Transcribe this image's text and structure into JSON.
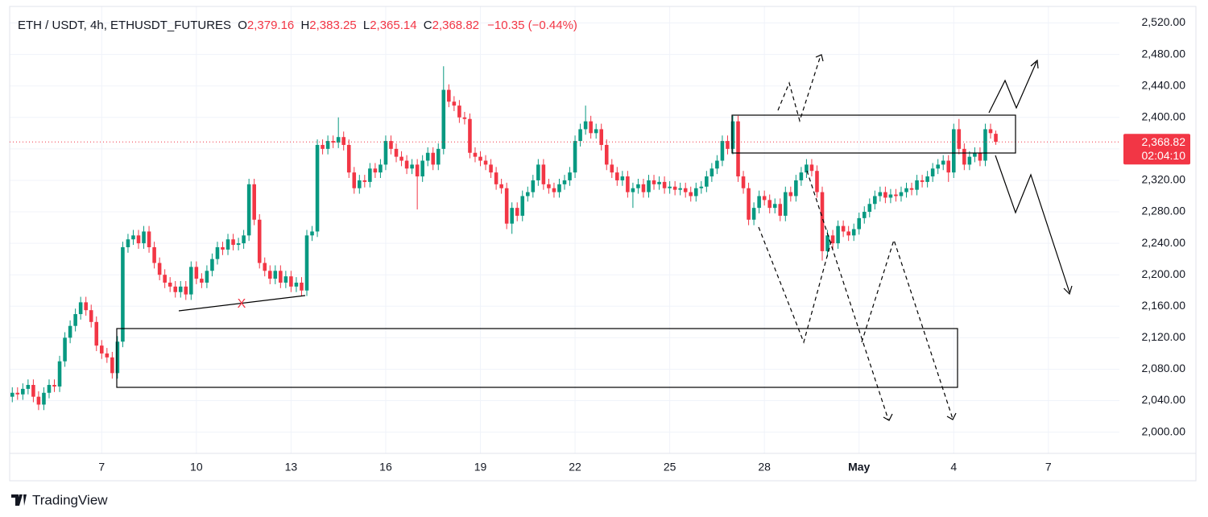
{
  "chart_data": {
    "type": "candlestick",
    "header": {
      "symbol": "ETH / USDT, 4h, ETHUSDT_FUTURES",
      "o_label": "O",
      "o": "2,379.16",
      "h_label": "H",
      "h": "2,383.25",
      "l_label": "L",
      "l": "2,365.14",
      "c_label": "C",
      "c": "2,368.82",
      "change": "−10.35 (−0.44%)"
    },
    "price_tag": {
      "price": "2,368.82",
      "countdown": "02:04:10"
    },
    "annotation": "X",
    "brand": "TradingView",
    "up_color": "#089981",
    "down_color": "#f23645",
    "price_line_color": "#f23645",
    "grid": true,
    "xlim": [
      -0.5,
      210.5
    ],
    "xticks": [
      {
        "value": 17,
        "label": "7"
      },
      {
        "value": 35,
        "label": "10"
      },
      {
        "value": 53,
        "label": "13"
      },
      {
        "value": 71,
        "label": "16"
      },
      {
        "value": 89,
        "label": "19"
      },
      {
        "value": 107,
        "label": "22"
      },
      {
        "value": 125,
        "label": "25"
      },
      {
        "value": 143,
        "label": "28"
      },
      {
        "value": 161,
        "label": "May"
      },
      {
        "value": 179,
        "label": "4"
      },
      {
        "value": 197,
        "label": "7"
      }
    ],
    "ylim": [
      1973,
      2541
    ],
    "yticks": [
      {
        "value": 2000,
        "label": "2,000.00"
      },
      {
        "value": 2040,
        "label": "2,040.00"
      },
      {
        "value": 2080,
        "label": "2,080.00"
      },
      {
        "value": 2120,
        "label": "2,120.00"
      },
      {
        "value": 2160,
        "label": "2,160.00"
      },
      {
        "value": 2200,
        "label": "2,200.00"
      },
      {
        "value": 2240,
        "label": "2,240.00"
      },
      {
        "value": 2280,
        "label": "2,280.00"
      },
      {
        "value": 2320,
        "label": "2,320.00"
      },
      {
        "value": 2360,
        "label": "2,360.00"
      },
      {
        "value": 2400,
        "label": "2,400.00"
      },
      {
        "value": 2440,
        "label": "2,440.00"
      },
      {
        "value": 2480,
        "label": "2,480.00"
      },
      {
        "value": 2520,
        "label": "2,520.00"
      }
    ],
    "open": [
      2045,
      2050,
      2048,
      2055,
      2060,
      2045,
      2035,
      2050,
      2060,
      2058,
      2090,
      2120,
      2135,
      2150,
      2165,
      2155,
      2140,
      2110,
      2100,
      2095,
      2075,
      2115,
      2235,
      2245,
      2250,
      2240,
      2255,
      2235,
      2215,
      2200,
      2190,
      2185,
      2178,
      2185,
      2175,
      2210,
      2195,
      2190,
      2205,
      2220,
      2235,
      2232,
      2245,
      2238,
      2240,
      2250,
      2315,
      2270,
      2215,
      2205,
      2195,
      2205,
      2190,
      2198,
      2185,
      2190,
      2180,
      2250,
      2255,
      2365,
      2360,
      2370,
      2368,
      2375,
      2365,
      2330,
      2310,
      2320,
      2318,
      2335,
      2330,
      2340,
      2370,
      2360,
      2350,
      2345,
      2335,
      2340,
      2325,
      2345,
      2355,
      2340,
      2360,
      2435,
      2420,
      2415,
      2400,
      2398,
      2355,
      2350,
      2345,
      2340,
      2330,
      2315,
      2310,
      2265,
      2285,
      2275,
      2300,
      2305,
      2320,
      2340,
      2315,
      2310,
      2305,
      2315,
      2320,
      2330,
      2370,
      2385,
      2395,
      2380,
      2385,
      2365,
      2340,
      2330,
      2320,
      2325,
      2305,
      2310,
      2315,
      2305,
      2320,
      2315,
      2318,
      2310,
      2312,
      2308,
      2310,
      2305,
      2300,
      2310,
      2312,
      2325,
      2335,
      2345,
      2370,
      2360,
      2395,
      2325,
      2310,
      2270,
      2285,
      2300,
      2295,
      2285,
      2290,
      2275,
      2305,
      2300,
      2320,
      2330,
      2340,
      2332,
      2305,
      2230,
      2250,
      2240,
      2262,
      2255,
      2250,
      2258,
      2272,
      2280,
      2290,
      2300,
      2305,
      2298,
      2302,
      2300,
      2305,
      2310,
      2308,
      2320,
      2318,
      2325,
      2335,
      2340,
      2345,
      2330,
      2385,
      2360,
      2340,
      2350,
      2355,
      2345,
      2385,
      2379.16
    ],
    "high": [
      2057,
      2057,
      2062,
      2067,
      2067,
      2052,
      2057,
      2067,
      2067,
      2097,
      2127,
      2142,
      2157,
      2172,
      2172,
      2162,
      2147,
      2117,
      2107,
      2102,
      2122,
      2242,
      2252,
      2257,
      2257,
      2262,
      2262,
      2242,
      2222,
      2207,
      2197,
      2192,
      2192,
      2192,
      2217,
      2217,
      2202,
      2212,
      2227,
      2242,
      2242,
      2252,
      2252,
      2247,
      2257,
      2322,
      2322,
      2277,
      2222,
      2212,
      2212,
      2212,
      2205,
      2205,
      2197,
      2197,
      2257,
      2262,
      2372,
      2372,
      2377,
      2377,
      2400,
      2382,
      2372,
      2337,
      2327,
      2327,
      2342,
      2342,
      2347,
      2377,
      2377,
      2367,
      2357,
      2352,
      2347,
      2347,
      2352,
      2362,
      2362,
      2367,
      2465,
      2442,
      2427,
      2422,
      2407,
      2405,
      2362,
      2357,
      2352,
      2347,
      2337,
      2322,
      2317,
      2292,
      2292,
      2307,
      2312,
      2327,
      2347,
      2347,
      2322,
      2317,
      2322,
      2327,
      2337,
      2377,
      2392,
      2415,
      2402,
      2392,
      2392,
      2372,
      2347,
      2337,
      2332,
      2332,
      2317,
      2322,
      2322,
      2327,
      2327,
      2325,
      2325,
      2319,
      2319,
      2317,
      2317,
      2312,
      2317,
      2319,
      2332,
      2342,
      2352,
      2377,
      2377,
      2402,
      2402,
      2332,
      2317,
      2292,
      2307,
      2307,
      2302,
      2297,
      2297,
      2312,
      2312,
      2327,
      2337,
      2347,
      2347,
      2339,
      2312,
      2257,
      2257,
      2269,
      2269,
      2262,
      2265,
      2279,
      2287,
      2297,
      2307,
      2312,
      2312,
      2309,
      2309,
      2312,
      2317,
      2317,
      2327,
      2327,
      2332,
      2342,
      2347,
      2352,
      2352,
      2392,
      2398,
      2367,
      2357,
      2362,
      2362,
      2392,
      2392,
      2383.25
    ],
    "low": [
      2038,
      2041,
      2041,
      2048,
      2038,
      2028,
      2028,
      2043,
      2051,
      2051,
      2083,
      2113,
      2128,
      2143,
      2148,
      2133,
      2103,
      2093,
      2088,
      2068,
      2068,
      2108,
      2228,
      2238,
      2233,
      2233,
      2228,
      2208,
      2193,
      2183,
      2178,
      2171,
      2171,
      2168,
      2168,
      2188,
      2183,
      2183,
      2198,
      2213,
      2225,
      2225,
      2231,
      2231,
      2233,
      2243,
      2263,
      2208,
      2198,
      2188,
      2188,
      2183,
      2183,
      2178,
      2178,
      2173,
      2173,
      2243,
      2248,
      2353,
      2353,
      2361,
      2361,
      2358,
      2323,
      2303,
      2303,
      2311,
      2311,
      2323,
      2323,
      2333,
      2353,
      2343,
      2338,
      2328,
      2328,
      2283,
      2318,
      2338,
      2333,
      2333,
      2353,
      2413,
      2408,
      2393,
      2391,
      2348,
      2343,
      2338,
      2333,
      2323,
      2308,
      2303,
      2258,
      2252,
      2268,
      2268,
      2293,
      2298,
      2313,
      2308,
      2303,
      2298,
      2298,
      2308,
      2313,
      2323,
      2363,
      2378,
      2373,
      2373,
      2358,
      2333,
      2323,
      2313,
      2313,
      2298,
      2285,
      2303,
      2298,
      2298,
      2308,
      2308,
      2303,
      2303,
      2301,
      2301,
      2298,
      2293,
      2293,
      2303,
      2305,
      2318,
      2328,
      2338,
      2353,
      2353,
      2318,
      2303,
      2263,
      2263,
      2278,
      2288,
      2278,
      2278,
      2268,
      2268,
      2293,
      2293,
      2313,
      2323,
      2325,
      2298,
      2218,
      2223,
      2233,
      2233,
      2248,
      2243,
      2243,
      2251,
      2265,
      2273,
      2283,
      2293,
      2291,
      2291,
      2293,
      2293,
      2298,
      2301,
      2301,
      2311,
      2311,
      2318,
      2328,
      2333,
      2318,
      2323,
      2353,
      2333,
      2333,
      2343,
      2338,
      2338,
      2373,
      2365.14
    ],
    "close": [
      2050,
      2048,
      2055,
      2060,
      2045,
      2035,
      2050,
      2060,
      2058,
      2090,
      2120,
      2135,
      2150,
      2165,
      2155,
      2140,
      2110,
      2100,
      2095,
      2075,
      2115,
      2235,
      2245,
      2250,
      2240,
      2255,
      2235,
      2215,
      2200,
      2190,
      2185,
      2178,
      2185,
      2175,
      2210,
      2195,
      2190,
      2205,
      2220,
      2235,
      2232,
      2245,
      2238,
      2240,
      2250,
      2315,
      2270,
      2215,
      2205,
      2195,
      2205,
      2190,
      2198,
      2185,
      2190,
      2180,
      2250,
      2255,
      2365,
      2360,
      2370,
      2368,
      2375,
      2365,
      2330,
      2310,
      2320,
      2318,
      2335,
      2330,
      2340,
      2370,
      2360,
      2350,
      2345,
      2335,
      2340,
      2325,
      2345,
      2355,
      2340,
      2360,
      2435,
      2420,
      2415,
      2400,
      2398,
      2355,
      2350,
      2345,
      2340,
      2330,
      2315,
      2310,
      2265,
      2285,
      2275,
      2300,
      2305,
      2320,
      2340,
      2315,
      2310,
      2305,
      2315,
      2320,
      2330,
      2370,
      2385,
      2395,
      2380,
      2385,
      2365,
      2340,
      2330,
      2320,
      2325,
      2305,
      2310,
      2315,
      2305,
      2320,
      2315,
      2318,
      2310,
      2312,
      2308,
      2310,
      2305,
      2300,
      2310,
      2312,
      2325,
      2335,
      2345,
      2370,
      2360,
      2395,
      2325,
      2310,
      2270,
      2285,
      2300,
      2295,
      2285,
      2290,
      2275,
      2305,
      2300,
      2320,
      2330,
      2340,
      2332,
      2305,
      2230,
      2250,
      2240,
      2262,
      2255,
      2250,
      2258,
      2272,
      2280,
      2290,
      2300,
      2305,
      2298,
      2302,
      2300,
      2305,
      2310,
      2308,
      2320,
      2318,
      2325,
      2335,
      2340,
      2345,
      2330,
      2385,
      2360,
      2340,
      2350,
      2355,
      2345,
      2385,
      2380,
      2368.82
    ]
  }
}
